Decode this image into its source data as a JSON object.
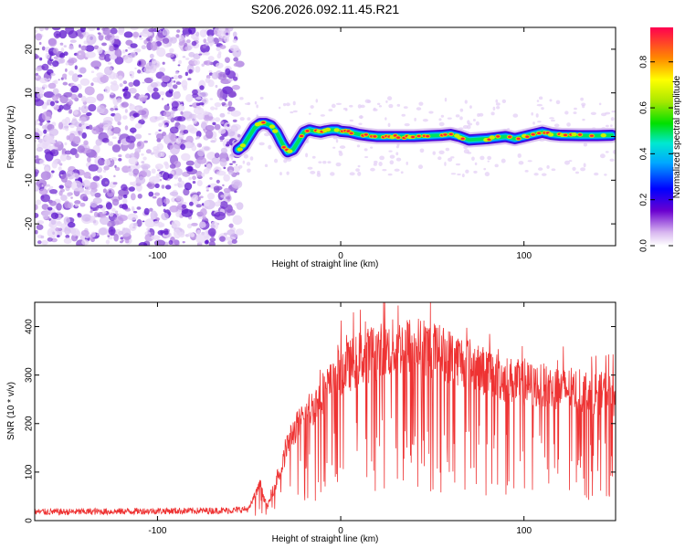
{
  "figure": {
    "title": "S206.2026.092.11.45.R21"
  },
  "chart_data": [
    {
      "type": "heatmap",
      "xlabel": "Height of straight line (km)",
      "ylabel": "Frequency (Hz)",
      "xlim": [
        -167,
        150
      ],
      "ylim": [
        -25,
        25
      ],
      "xticks": [
        -100,
        0,
        100
      ],
      "yticks": [
        -20,
        -10,
        0,
        10,
        20
      ],
      "colorbar": {
        "label": "Normalized spectral amplitude",
        "range": [
          0,
          0.95
        ],
        "ticks": [
          0.0,
          0.2,
          0.4,
          0.6,
          0.8
        ]
      },
      "noise_region_x": [
        -167,
        -55
      ],
      "trace": {
        "x": [
          -56,
          -53,
          -50,
          -47,
          -44,
          -41,
          -38,
          -35,
          -32,
          -29,
          -26,
          -23,
          -20,
          -17,
          -14,
          -11,
          -8,
          -5,
          -2,
          0,
          5,
          10,
          15,
          20,
          30,
          40,
          50,
          55,
          60,
          65,
          70,
          80,
          90,
          95,
          100,
          105,
          110,
          115,
          120,
          130,
          140,
          148
        ],
        "y": [
          -3,
          -2,
          0,
          2,
          3,
          3,
          2.5,
          1,
          -1.5,
          -3.5,
          -3,
          -1,
          1,
          1.5,
          1.2,
          1,
          1.3,
          1.5,
          1.5,
          1.2,
          1,
          0.5,
          0.2,
          0,
          0,
          0,
          0.2,
          0.3,
          0.5,
          0,
          -0.8,
          -0.5,
          0,
          -0.5,
          0,
          0.5,
          1,
          0.5,
          0.3,
          0.2,
          0.2,
          0.3
        ]
      }
    },
    {
      "type": "line",
      "xlabel": "Height of straight line (km)",
      "ylabel": "SNR (10 * v/v)",
      "xlim": [
        -167,
        150
      ],
      "ylim": [
        0,
        450
      ],
      "xticks": [
        -100,
        0,
        100
      ],
      "yticks": [
        0,
        100,
        200,
        300,
        400
      ],
      "series": [
        {
          "color": "#ee3333",
          "x": [
            -167,
            -150,
            -120,
            -100,
            -80,
            -60,
            -50,
            -46,
            -44,
            -42,
            -40,
            -36,
            -32,
            -28,
            -25,
            -22,
            -18,
            -15,
            -12,
            -10,
            -5,
            0,
            5,
            10,
            20,
            30,
            40,
            50,
            60,
            70,
            80,
            90,
            100,
            110,
            120,
            130,
            140,
            150
          ],
          "y": [
            18,
            18,
            19,
            20,
            20,
            21,
            24,
            60,
            80,
            50,
            30,
            75,
            120,
            180,
            200,
            215,
            240,
            250,
            265,
            280,
            300,
            330,
            340,
            355,
            370,
            380,
            385,
            375,
            360,
            345,
            325,
            310,
            300,
            295,
            290,
            285,
            280,
            275
          ]
        }
      ]
    }
  ]
}
